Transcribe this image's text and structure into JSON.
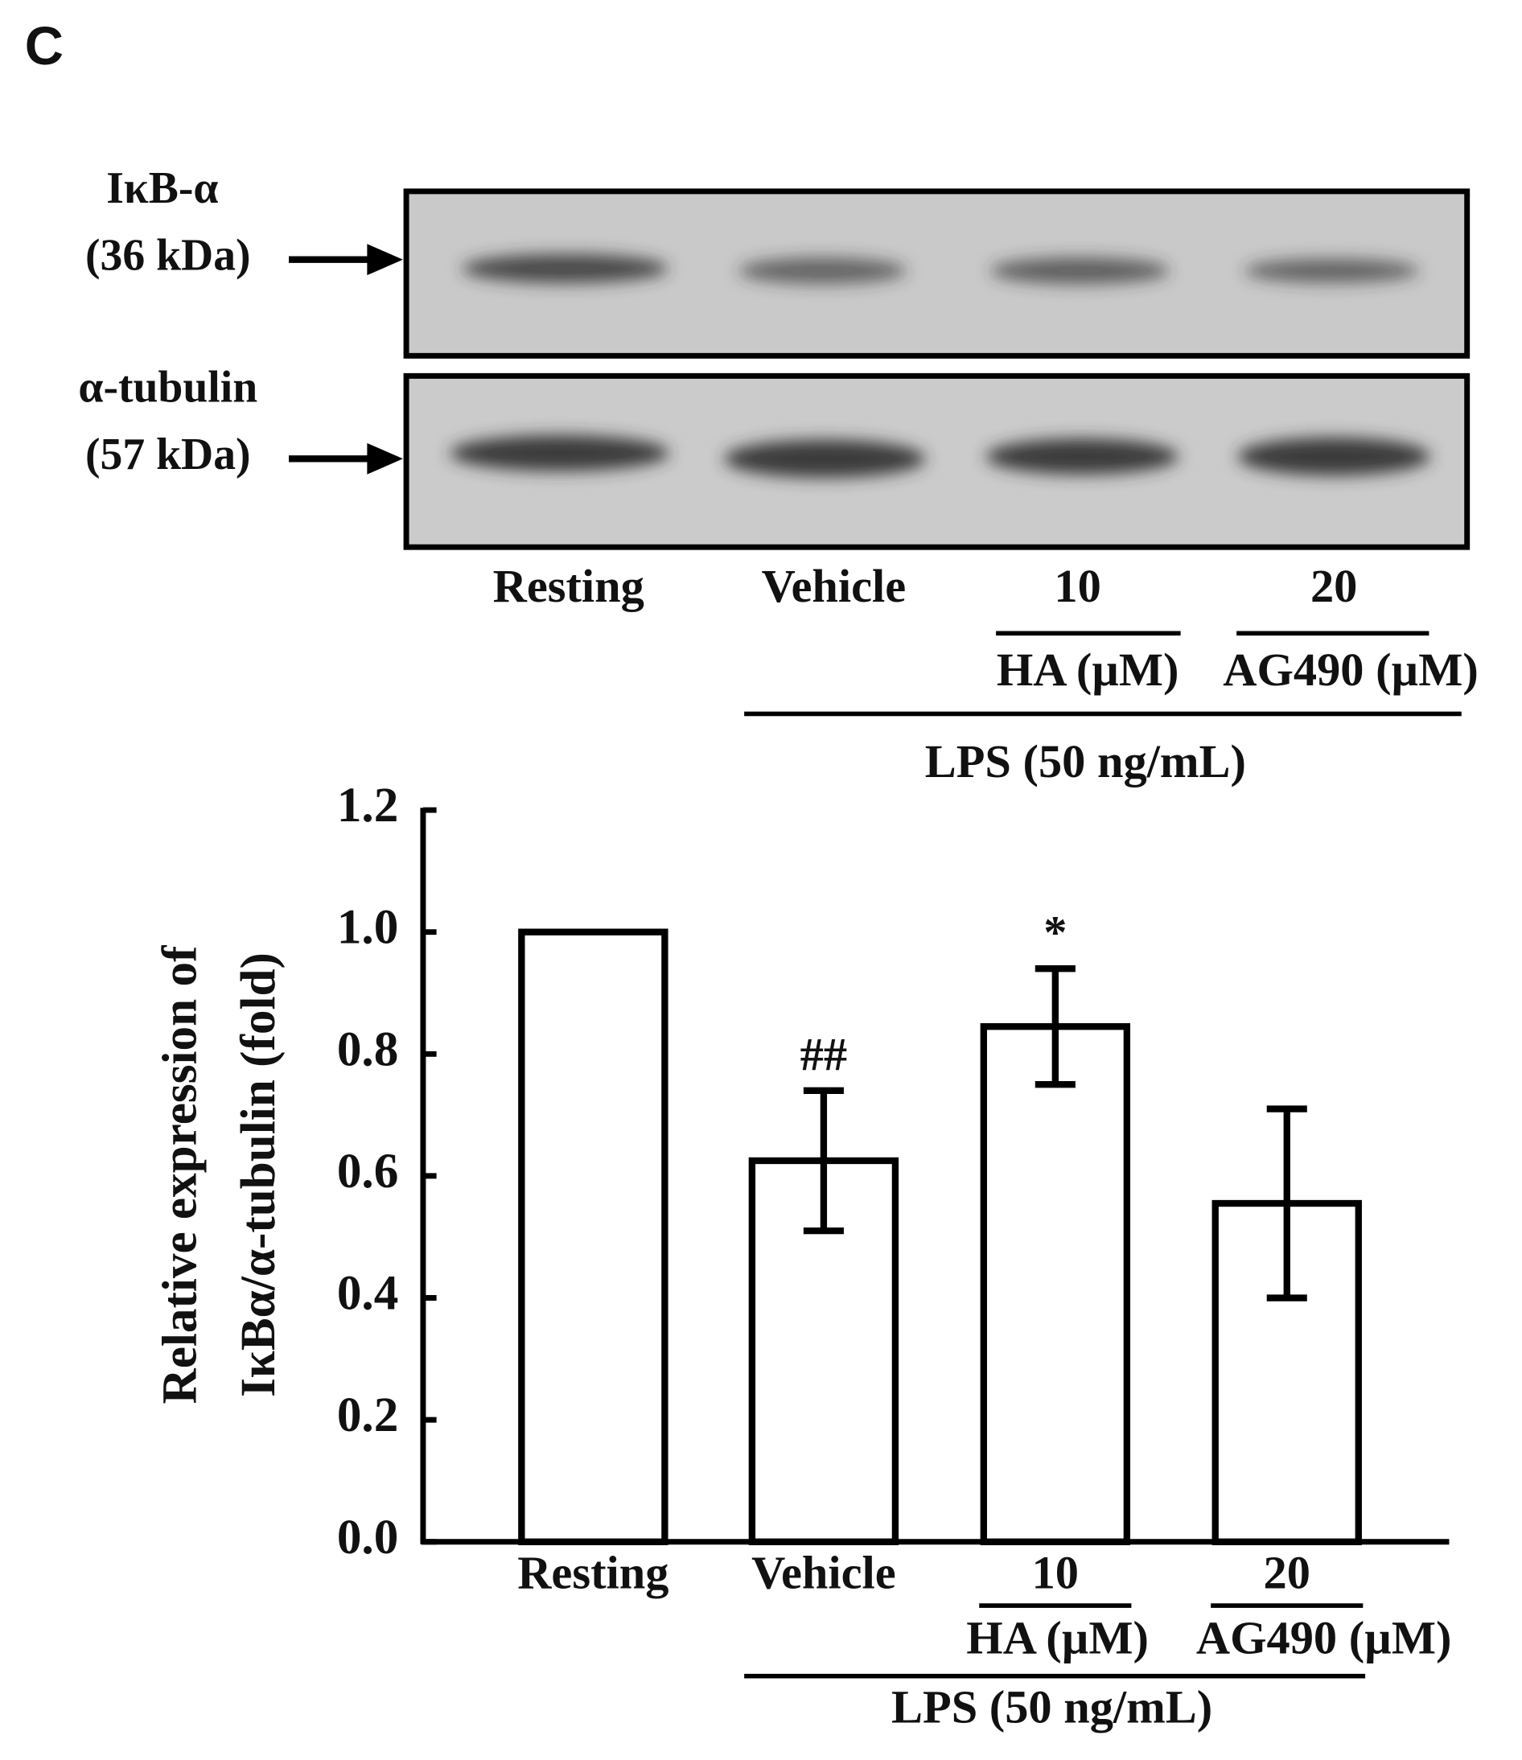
{
  "panel_label": "C",
  "blot": {
    "rows": [
      {
        "name": "IκB-α",
        "size": "(36 kDa)"
      },
      {
        "name": "α-tubulin",
        "size": "(57 kDa)"
      }
    ],
    "lanes": [
      "Resting",
      "Vehicle",
      "10",
      "20"
    ],
    "group_labels": [
      "HA (µM)",
      "AG490 (µM)"
    ],
    "condition_label": "LPS (50 ng/mL)"
  },
  "chart_data": {
    "type": "bar",
    "ylabel": [
      "Relative expression of",
      "IκBα/α-tubulin (fold)"
    ],
    "categories": [
      "Resting",
      "Vehicle",
      "10",
      "20"
    ],
    "values": [
      1.0,
      0.625,
      0.845,
      0.555
    ],
    "errors": [
      null,
      0.115,
      0.095,
      0.155
    ],
    "significance": [
      null,
      "##",
      "*",
      null
    ],
    "group_labels": [
      "HA (µM)",
      "AG490 (µM)"
    ],
    "condition_label": "LPS (50 ng/mL)",
    "color": "#ffffff",
    "ylim": [
      0,
      1.2
    ],
    "yticks": [
      {
        "value": 0,
        "label": "0.0"
      },
      0.2,
      0.4,
      0.6,
      0.8,
      {
        "value": 1,
        "label": "1.0"
      },
      1.2
    ]
  }
}
